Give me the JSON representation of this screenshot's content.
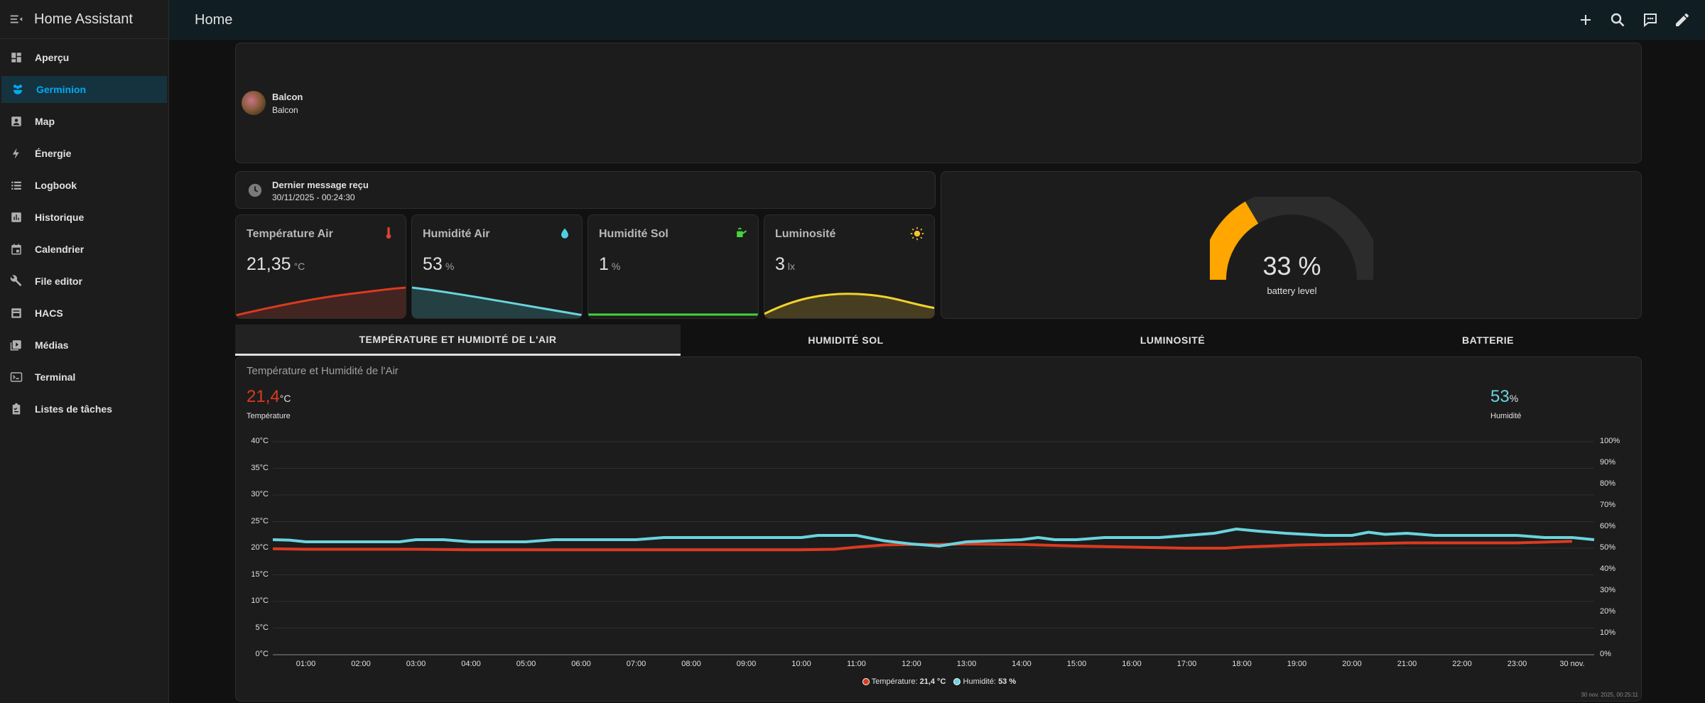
{
  "app": {
    "title": "Home Assistant"
  },
  "sidebar": {
    "items": [
      {
        "label": "Aperçu",
        "icon": "dashboard-icon"
      },
      {
        "label": "Germinion",
        "icon": "flower-icon"
      },
      {
        "label": "Map",
        "icon": "map-icon"
      },
      {
        "label": "Énergie",
        "icon": "lightning-icon"
      },
      {
        "label": "Logbook",
        "icon": "list-icon"
      },
      {
        "label": "Historique",
        "icon": "chart-icon"
      },
      {
        "label": "Calendrier",
        "icon": "calendar-icon"
      },
      {
        "label": "File editor",
        "icon": "wrench-icon"
      },
      {
        "label": "HACS",
        "icon": "hacs-icon"
      },
      {
        "label": "Médias",
        "icon": "media-icon"
      },
      {
        "label": "Terminal",
        "icon": "terminal-icon"
      },
      {
        "label": "Listes de tâches",
        "icon": "clipboard-icon"
      }
    ],
    "active_index": 1
  },
  "topbar": {
    "title": "Home"
  },
  "plant": {
    "name": "Balcon",
    "area": "Balcon"
  },
  "last_message": {
    "label": "Dernier message reçu",
    "value": "30/11/2025 - 00:24:30"
  },
  "sensors": [
    {
      "name": "Température Air",
      "value": "21,35",
      "unit": "°C",
      "color": "#db4437",
      "icon": "thermometer-icon"
    },
    {
      "name": "Humidité Air",
      "value": "53",
      "unit": "%",
      "color": "#4dd0e1",
      "icon": "water-drop-icon"
    },
    {
      "name": "Humidité Sol",
      "value": "1",
      "unit": "%",
      "color": "#43d43e",
      "icon": "watering-can-icon"
    },
    {
      "name": "Luminosité",
      "value": "3",
      "unit": "lx",
      "color": "#f4c430",
      "icon": "sun-icon"
    }
  ],
  "battery": {
    "value": "33 %",
    "percent": 33,
    "label": "battery level",
    "color": "#ffa600"
  },
  "tabs": [
    {
      "label": "TEMPÉRATURE ET HUMIDITÉ DE L'AIR",
      "active": true
    },
    {
      "label": "HUMIDITÉ SOL",
      "active": false
    },
    {
      "label": "LUMINOSITÉ",
      "active": false
    },
    {
      "label": "BATTERIE",
      "active": false
    }
  ],
  "chart_card": {
    "title": "Température et Humidité de l'Air",
    "temp_value": "21,4",
    "temp_unit": "°C",
    "temp_label": "Température",
    "hum_value": "53",
    "hum_unit": "%",
    "hum_label": "Humidité",
    "legend_temp": "Température:",
    "legend_temp_val": "21,4 °C",
    "legend_hum": "Humidité:",
    "legend_hum_val": "53 %",
    "footer_timestamp": "30 nov. 2025, 00:25:11"
  },
  "chart_data": {
    "type": "line",
    "x_tick_labels": [
      "01:00",
      "02:00",
      "03:00",
      "04:00",
      "05:00",
      "06:00",
      "07:00",
      "08:00",
      "09:00",
      "10:00",
      "11:00",
      "12:00",
      "13:00",
      "14:00",
      "15:00",
      "16:00",
      "17:00",
      "18:00",
      "19:00",
      "20:00",
      "21:00",
      "22:00",
      "23:00",
      "30 nov."
    ],
    "y_left_ticks": [
      "40°C",
      "35°C",
      "30°C",
      "25°C",
      "20°C",
      "15°C",
      "10°C",
      "5°C",
      "0°C"
    ],
    "y_left_range": [
      0,
      40
    ],
    "y_right_ticks": [
      "100%",
      "90%",
      "80%",
      "70%",
      "60%",
      "50%",
      "40%",
      "30%",
      "20%",
      "10%",
      "0%"
    ],
    "y_right_range": [
      0,
      100
    ],
    "x_range_hours": [
      0.4,
      24.4
    ],
    "series": [
      {
        "name": "Température",
        "axis": "left",
        "color": "#db3a1f",
        "points": [
          [
            0.4,
            19.9
          ],
          [
            1,
            19.8
          ],
          [
            2,
            19.8
          ],
          [
            3,
            19.8
          ],
          [
            4,
            19.7
          ],
          [
            5,
            19.7
          ],
          [
            6,
            19.7
          ],
          [
            7,
            19.7
          ],
          [
            8,
            19.7
          ],
          [
            9,
            19.7
          ],
          [
            10,
            19.7
          ],
          [
            10.6,
            19.8
          ],
          [
            11,
            20.2
          ],
          [
            11.5,
            20.6
          ],
          [
            12,
            20.7
          ],
          [
            12.5,
            20.7
          ],
          [
            13,
            20.8
          ],
          [
            14,
            20.7
          ],
          [
            15,
            20.4
          ],
          [
            16,
            20.2
          ],
          [
            17,
            20.0
          ],
          [
            17.7,
            20.0
          ],
          [
            18,
            20.2
          ],
          [
            19,
            20.6
          ],
          [
            20,
            20.8
          ],
          [
            21,
            21.0
          ],
          [
            22,
            21.0
          ],
          [
            23,
            21.0
          ],
          [
            24,
            21.3
          ]
        ]
      },
      {
        "name": "Humidité",
        "axis": "right",
        "color": "#6ad4dd",
        "points": [
          [
            0.4,
            54
          ],
          [
            0.7,
            53.8
          ],
          [
            1,
            53
          ],
          [
            2,
            53
          ],
          [
            2.7,
            53
          ],
          [
            3,
            54
          ],
          [
            3.5,
            54
          ],
          [
            4,
            53
          ],
          [
            5,
            53
          ],
          [
            5.5,
            54
          ],
          [
            6,
            54
          ],
          [
            7,
            54
          ],
          [
            7.5,
            55
          ],
          [
            8,
            55
          ],
          [
            9,
            55
          ],
          [
            10,
            55
          ],
          [
            10.3,
            56
          ],
          [
            11,
            56
          ],
          [
            11.5,
            53.5
          ],
          [
            12,
            52
          ],
          [
            12.5,
            51
          ],
          [
            13,
            53
          ],
          [
            14,
            54
          ],
          [
            14.3,
            55
          ],
          [
            14.6,
            54
          ],
          [
            15,
            54
          ],
          [
            15.5,
            55
          ],
          [
            16,
            55
          ],
          [
            16.5,
            55
          ],
          [
            17,
            56
          ],
          [
            17.5,
            57
          ],
          [
            17.9,
            59
          ],
          [
            18.3,
            58
          ],
          [
            18.8,
            57
          ],
          [
            19.5,
            56
          ],
          [
            20,
            56
          ],
          [
            20.3,
            57.5
          ],
          [
            20.6,
            56.5
          ],
          [
            21,
            57
          ],
          [
            21.5,
            56
          ],
          [
            22,
            56
          ],
          [
            22.5,
            56
          ],
          [
            23,
            56
          ],
          [
            23.5,
            55
          ],
          [
            24,
            55
          ],
          [
            24.4,
            54
          ]
        ]
      }
    ]
  }
}
